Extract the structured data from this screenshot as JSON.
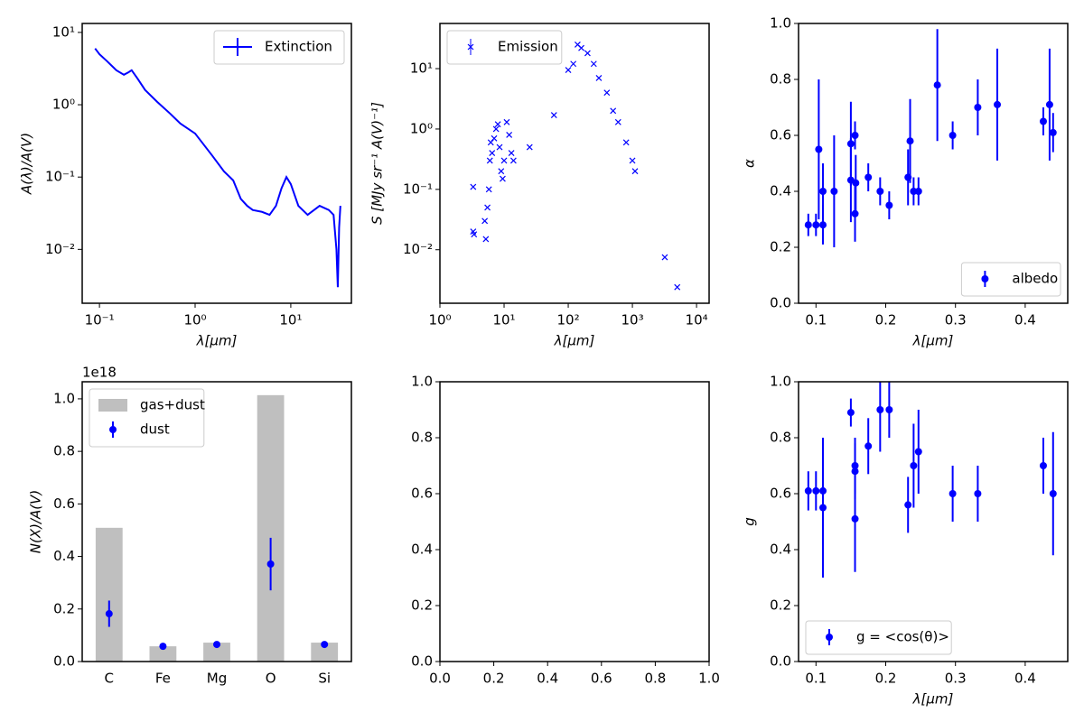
{
  "chart_data": [
    {
      "type": "line",
      "xscale": "log",
      "yscale": "log",
      "xlim": [
        0.066,
        43
      ],
      "ylim": [
        0.0018,
        13.3
      ],
      "xticks": [
        {
          "value": 0.1,
          "label": "10⁻¹"
        },
        {
          "value": 1,
          "label": "10⁰"
        },
        {
          "value": 10,
          "label": "10¹"
        }
      ],
      "yticks": [
        {
          "value": 0.01,
          "label": "10⁻²"
        },
        {
          "value": 0.1,
          "label": "10⁻¹"
        },
        {
          "value": 1,
          "label": "10⁰"
        },
        {
          "value": 10,
          "label": "10¹"
        }
      ],
      "xlabel": "λ[μm]",
      "ylabel": "A(λ)/A(V)",
      "legend": "upper right",
      "series": [
        {
          "name": "Extinction",
          "color": "#0000ff",
          "x": [
            0.09,
            0.1,
            0.12,
            0.15,
            0.18,
            0.2,
            0.217,
            0.25,
            0.3,
            0.4,
            0.55,
            0.7,
            1.0,
            1.5,
            2,
            2.5,
            3,
            3.5,
            4,
            5,
            6,
            7,
            8,
            9,
            10,
            12,
            15,
            20,
            25,
            28,
            30,
            31,
            32,
            33
          ],
          "values": [
            6,
            5,
            4,
            3,
            2.6,
            2.8,
            3.0,
            2.3,
            1.6,
            1.1,
            0.75,
            0.55,
            0.4,
            0.2,
            0.12,
            0.09,
            0.05,
            0.04,
            0.035,
            0.033,
            0.03,
            0.04,
            0.07,
            0.1,
            0.08,
            0.04,
            0.03,
            0.04,
            0.035,
            0.03,
            0.01,
            0.003,
            0.02,
            0.04
          ]
        }
      ]
    },
    {
      "type": "scatter",
      "xscale": "log",
      "yscale": "log",
      "xlim": [
        1,
        15700
      ],
      "ylim": [
        0.0013,
        56
      ],
      "xticks": [
        {
          "value": 1,
          "label": "10⁰"
        },
        {
          "value": 10,
          "label": "10¹"
        },
        {
          "value": 100,
          "label": "10²"
        },
        {
          "value": 1000,
          "label": "10³"
        },
        {
          "value": 10000,
          "label": "10⁴"
        }
      ],
      "yticks": [
        {
          "value": 0.01,
          "label": "10⁻²"
        },
        {
          "value": 0.1,
          "label": "10⁻¹"
        },
        {
          "value": 1,
          "label": "10⁰"
        },
        {
          "value": 10,
          "label": "10¹"
        }
      ],
      "xlabel": "λ[μm]",
      "ylabel": "S [MJy sr⁻¹ A(V)⁻¹]",
      "legend": "upper left",
      "series": [
        {
          "name": "Emission",
          "color": "#0000ff",
          "marker": "x",
          "x": [
            3.3,
            3.3,
            3.4,
            5,
            5.2,
            5.5,
            5.8,
            6,
            6.2,
            6.5,
            7,
            7.5,
            8,
            8.5,
            9,
            9.5,
            10,
            11,
            12,
            13,
            14,
            25,
            60,
            100,
            120,
            140,
            160,
            200,
            250,
            300,
            400,
            500,
            600,
            800,
            1000,
            1100,
            3200,
            5000
          ],
          "values": [
            0.11,
            0.02,
            0.018,
            0.03,
            0.015,
            0.05,
            0.1,
            0.3,
            0.6,
            0.4,
            0.7,
            1.0,
            1.2,
            0.5,
            0.2,
            0.15,
            0.3,
            1.3,
            0.8,
            0.4,
            0.3,
            0.5,
            1.7,
            9.5,
            12,
            25,
            22,
            18,
            12,
            7,
            4,
            2,
            1.3,
            0.6,
            0.3,
            0.2,
            0.0075,
            0.0024
          ]
        }
      ]
    },
    {
      "type": "scatter",
      "xlim": [
        0.075,
        0.461
      ],
      "ylim": [
        0,
        1
      ],
      "xticks": [
        0.1,
        0.2,
        0.3,
        0.4
      ],
      "yticks": [
        {
          "value": 0,
          "label": "0.0"
        },
        0.2,
        0.4,
        0.6,
        0.8,
        {
          "value": 1,
          "label": "1.0"
        }
      ],
      "xlabel": "λ[μm]",
      "ylabel": "α",
      "legend": "lower right",
      "series": [
        {
          "name": "albedo",
          "color": "#0000ff",
          "marker": "o",
          "x": [
            0.089,
            0.1,
            0.104,
            0.11,
            0.11,
            0.126,
            0.15,
            0.15,
            0.156,
            0.156,
            0.157,
            0.175,
            0.192,
            0.205,
            0.232,
            0.235,
            0.24,
            0.247,
            0.274,
            0.296,
            0.332,
            0.36,
            0.426,
            0.435,
            0.44
          ],
          "values": [
            0.28,
            0.28,
            0.55,
            0.4,
            0.28,
            0.4,
            0.57,
            0.44,
            0.6,
            0.32,
            0.43,
            0.45,
            0.4,
            0.35,
            0.45,
            0.58,
            0.4,
            0.4,
            0.78,
            0.6,
            0.7,
            0.71,
            0.65,
            0.71,
            0.61
          ],
          "errors": [
            0.04,
            0.04,
            0.25,
            0.1,
            0.07,
            0.2,
            0.15,
            0.15,
            0.05,
            0.1,
            0.1,
            0.05,
            0.05,
            0.05,
            0.1,
            0.15,
            0.05,
            0.05,
            0.2,
            0.05,
            0.1,
            0.2,
            0.05,
            0.2,
            0.07
          ]
        }
      ]
    },
    {
      "type": "bar",
      "ylim": [
        0,
        1.065
      ],
      "offset_text": "1e18",
      "yticks": [
        {
          "value": 0,
          "label": "0.0"
        },
        0.2,
        0.4,
        0.6,
        0.8,
        {
          "value": 1,
          "label": "1.0"
        }
      ],
      "ylabel": "N(X)/A(V)",
      "legend": "upper left",
      "categories": [
        "C",
        "Fe",
        "Mg",
        "O",
        "Si"
      ],
      "series": [
        {
          "name": "gas+dust",
          "color": "#bfbfbf",
          "values": [
            0.509,
            0.058,
            0.072,
            1.014,
            0.072
          ]
        },
        {
          "name": "dust",
          "color": "#0000ff",
          "marker": "o",
          "values": [
            0.182,
            0.058,
            0.065,
            0.371,
            0.065
          ],
          "errors": [
            0.05,
            0.005,
            0.005,
            0.1,
            0.005
          ]
        }
      ]
    },
    {
      "type": "scatter",
      "xlim": [
        0,
        1
      ],
      "ylim": [
        0,
        1
      ],
      "xticks": [
        {
          "value": 0,
          "label": "0.0"
        },
        0.2,
        0.4,
        0.6,
        0.8,
        {
          "value": 1,
          "label": "1.0"
        }
      ],
      "yticks": [
        {
          "value": 0,
          "label": "0.0"
        },
        0.2,
        0.4,
        0.6,
        0.8,
        {
          "value": 1,
          "label": "1.0"
        }
      ],
      "series": []
    },
    {
      "type": "scatter",
      "xlim": [
        0.075,
        0.461
      ],
      "ylim": [
        0,
        1
      ],
      "xticks": [
        0.1,
        0.2,
        0.3,
        0.4
      ],
      "yticks": [
        {
          "value": 0,
          "label": "0.0"
        },
        0.2,
        0.4,
        0.6,
        0.8,
        {
          "value": 1,
          "label": "1.0"
        }
      ],
      "xlabel": "λ[μm]",
      "ylabel": "g",
      "legend": "lower left",
      "series": [
        {
          "name": "g = <cos(θ)>",
          "color": "#0000ff",
          "marker": "o",
          "x": [
            0.089,
            0.1,
            0.11,
            0.11,
            0.15,
            0.156,
            0.156,
            0.156,
            0.175,
            0.192,
            0.205,
            0.232,
            0.24,
            0.247,
            0.296,
            0.332,
            0.426,
            0.44
          ],
          "values": [
            0.61,
            0.61,
            0.61,
            0.55,
            0.89,
            0.7,
            0.68,
            0.51,
            0.77,
            0.9,
            0.9,
            0.56,
            0.7,
            0.75,
            0.6,
            0.6,
            0.7,
            0.6
          ],
          "errors": [
            0.07,
            0.07,
            0.19,
            0.25,
            0.05,
            0.1,
            0.1,
            0.19,
            0.1,
            0.15,
            0.1,
            0.1,
            0.15,
            0.15,
            0.1,
            0.1,
            0.1,
            0.22
          ]
        }
      ]
    }
  ]
}
